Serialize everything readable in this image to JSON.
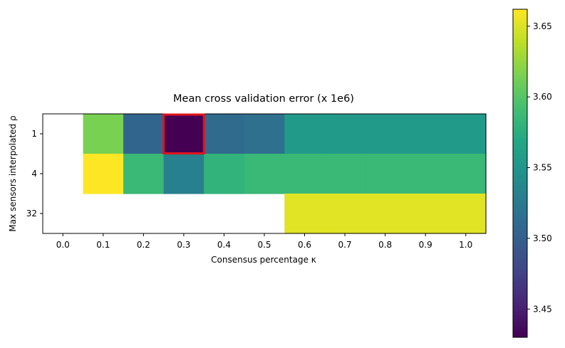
{
  "chart_data": {
    "type": "heatmap",
    "title": "Mean cross validation error (x 1e6)",
    "xlabel": "Consensus percentage κ",
    "ylabel": "Max sensors interpolated ρ",
    "x": [
      "0.0",
      "0.1",
      "0.2",
      "0.3",
      "0.4",
      "0.5",
      "0.6",
      "0.7",
      "0.8",
      "0.9",
      "1.0"
    ],
    "y": [
      "1",
      "4",
      "32"
    ],
    "values": [
      [
        null,
        3.615,
        3.505,
        3.43,
        3.51,
        3.515,
        3.555,
        3.555,
        3.555,
        3.555,
        3.555
      ],
      [
        null,
        3.662,
        3.585,
        3.53,
        3.58,
        3.585,
        3.585,
        3.585,
        3.585,
        3.585,
        3.585
      ],
      [
        null,
        null,
        null,
        null,
        null,
        null,
        3.652,
        3.652,
        3.652,
        3.652,
        3.652
      ]
    ],
    "colorbar": {
      "range": [
        3.43,
        3.662
      ],
      "ticks": [
        "3.45",
        "3.50",
        "3.55",
        "3.60",
        "3.65"
      ],
      "tick_values": [
        3.45,
        3.5,
        3.55,
        3.6,
        3.65
      ],
      "colormap": "viridis"
    },
    "highlight": {
      "row": 0,
      "col": 3,
      "color": "#e3121b"
    },
    "grid": false
  }
}
